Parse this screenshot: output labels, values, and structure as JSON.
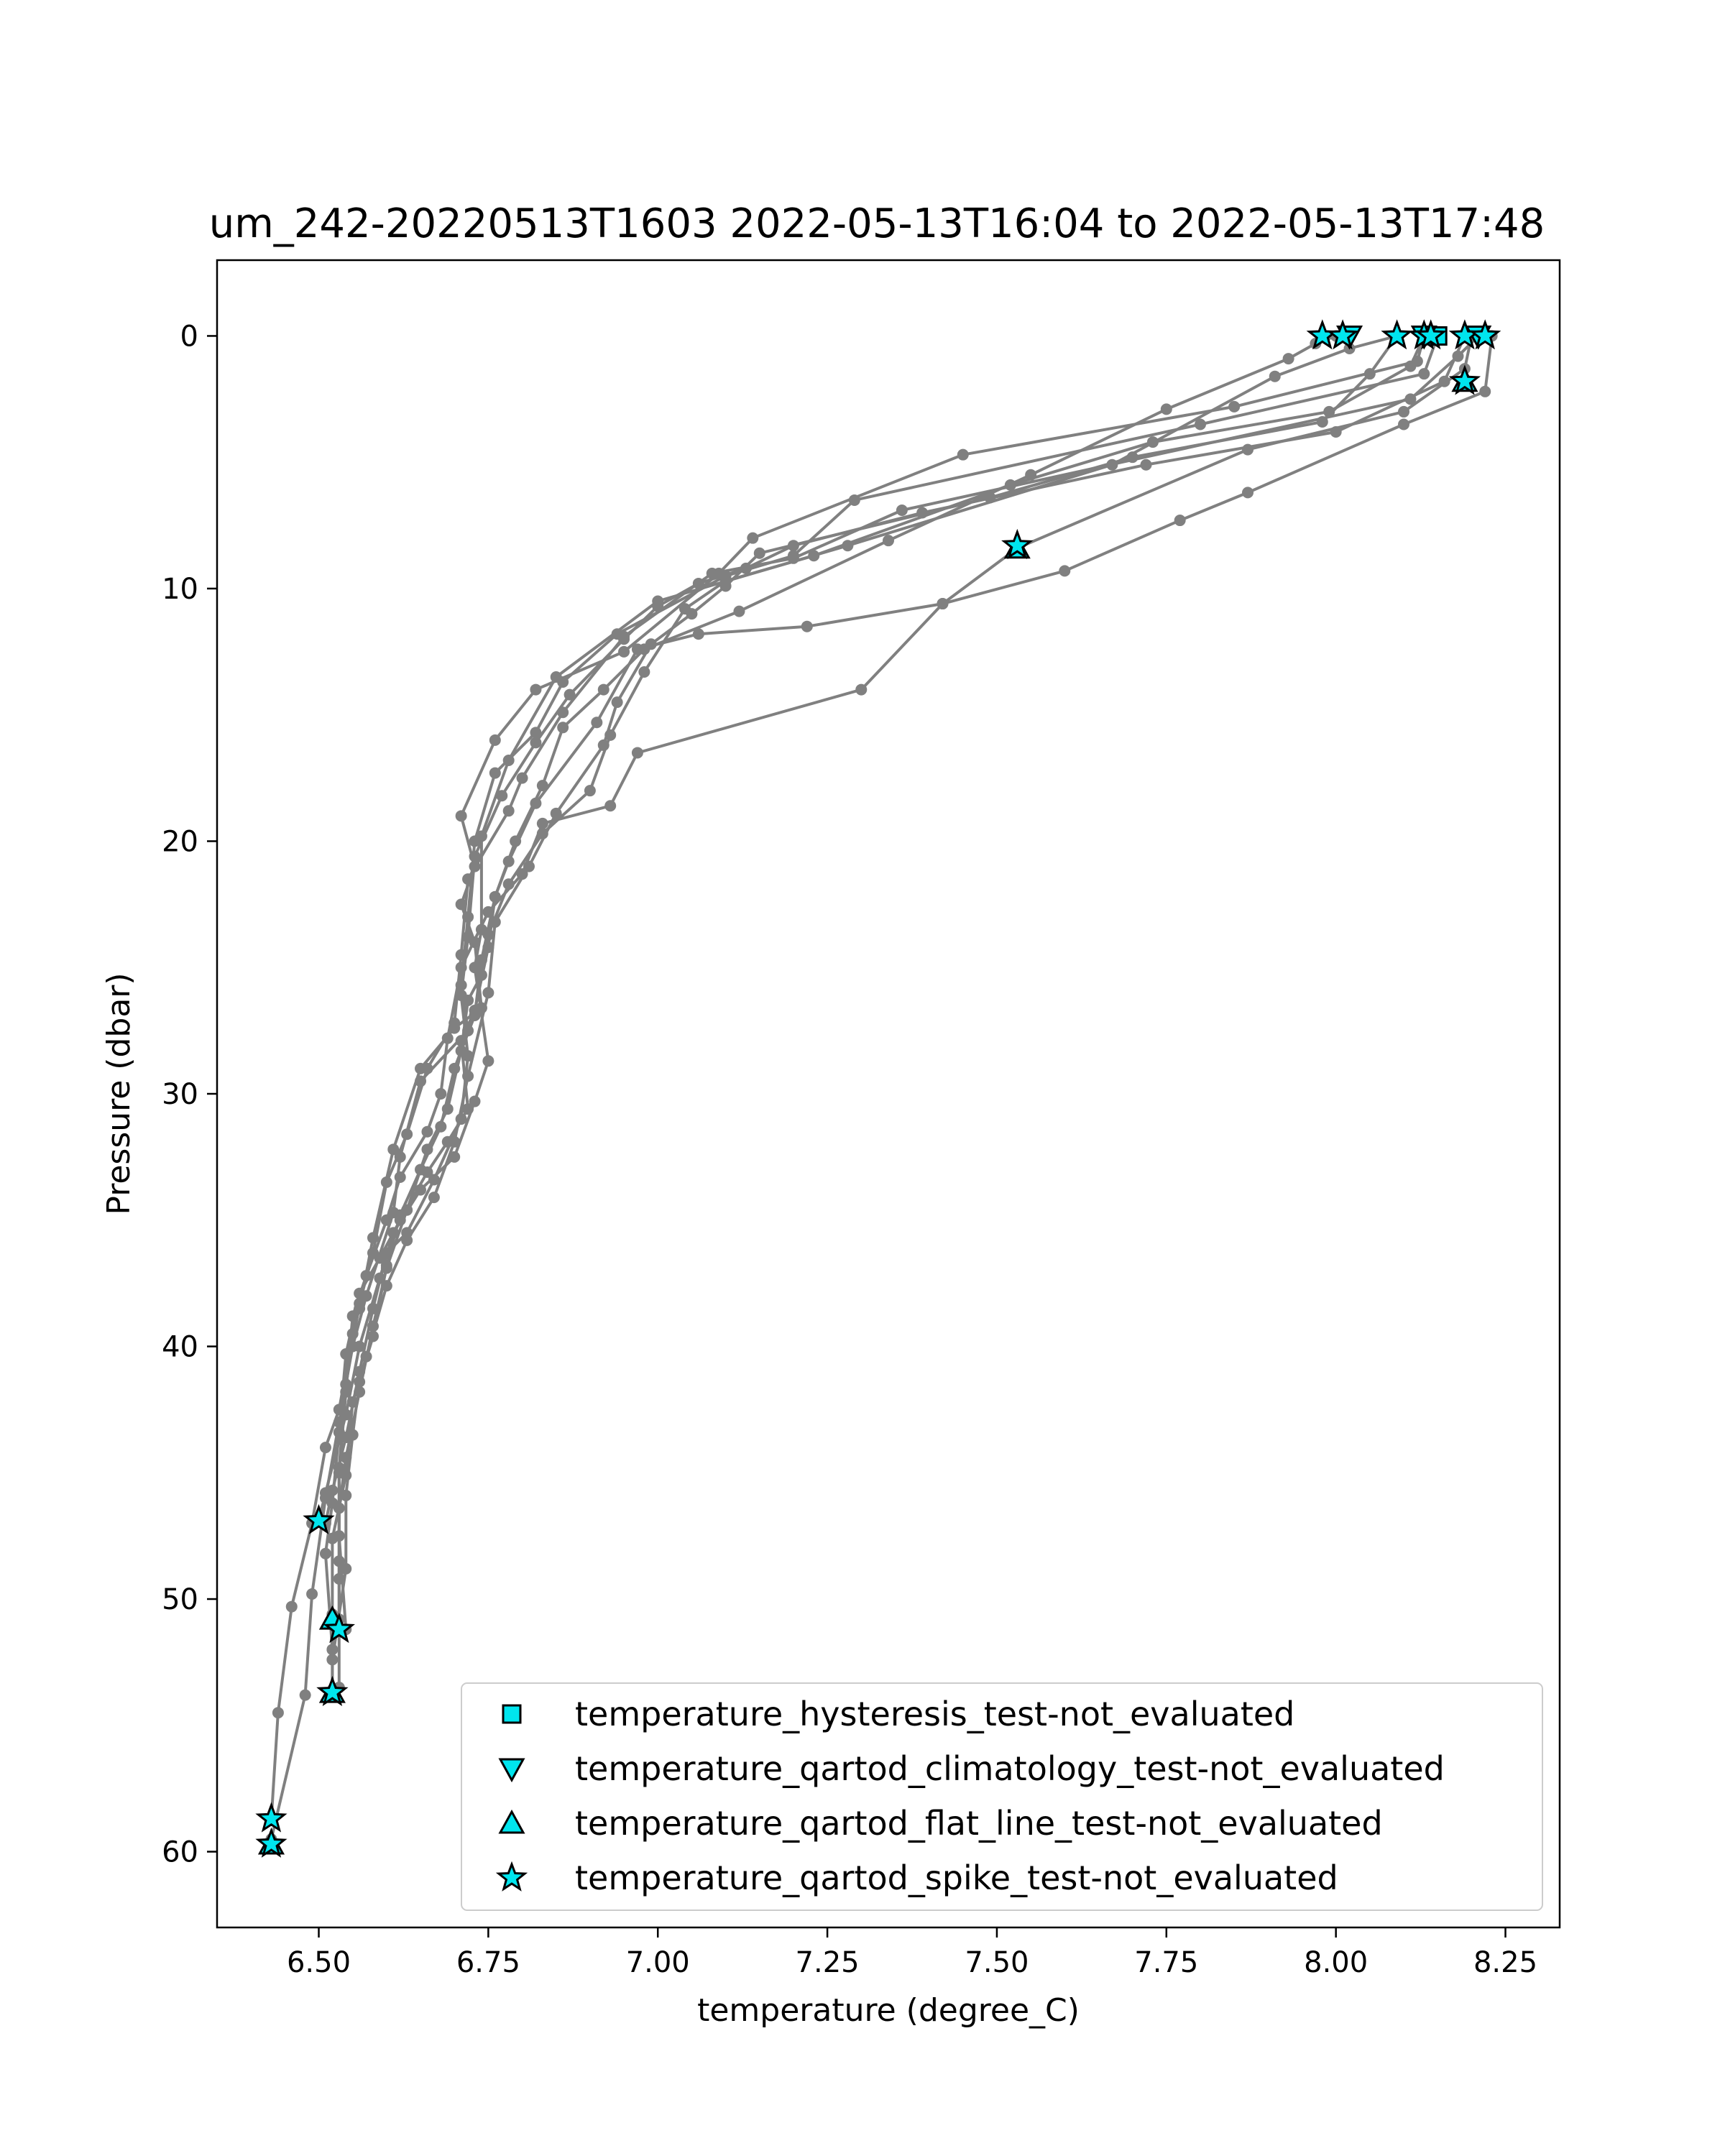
{
  "chart_data": {
    "type": "line",
    "title": "um_242-20220513T1603 2022-05-13T16:04 to 2022-05-13T17:48",
    "xlabel": "temperature (degree_C)",
    "ylabel": "Pressure (dbar)",
    "xlim": [
      6.35,
      8.33
    ],
    "ylim": [
      63.0,
      -3.0
    ],
    "y_inverted": true,
    "grid": false,
    "x_ticks": [
      6.5,
      6.75,
      7.0,
      7.25,
      7.5,
      7.75,
      8.0,
      8.25
    ],
    "x_tick_labels": [
      "6.50",
      "6.75",
      "7.00",
      "7.25",
      "7.50",
      "7.75",
      "8.00",
      "8.25"
    ],
    "y_ticks": [
      0,
      10,
      20,
      30,
      40,
      50,
      60
    ],
    "y_tick_labels": [
      "0",
      "10",
      "20",
      "30",
      "40",
      "50",
      "60"
    ],
    "line_color": "#808080",
    "marker_face_color": "#00e5ee",
    "marker_edge_color": "#000000",
    "legend_position": "lower-right",
    "series": [
      {
        "points": [
          [
            8.13,
            0.0
          ],
          [
            8.12,
            1.0
          ],
          [
            7.85,
            2.8
          ],
          [
            7.45,
            4.7
          ],
          [
            7.14,
            8.0
          ],
          [
            7.09,
            9.4
          ],
          [
            6.95,
            12.5
          ],
          [
            6.82,
            14.0
          ],
          [
            6.76,
            16.0
          ],
          [
            6.71,
            19.0
          ],
          [
            6.73,
            21.0
          ],
          [
            6.71,
            22.5
          ],
          [
            6.73,
            24.0
          ],
          [
            6.74,
            26.6
          ],
          [
            6.7,
            27.4
          ],
          [
            6.65,
            29.0
          ],
          [
            6.61,
            32.2
          ],
          [
            6.58,
            35.7
          ],
          [
            6.56,
            38.5
          ],
          [
            6.55,
            39.5
          ],
          [
            6.53,
            42.5
          ],
          [
            6.51,
            44.0
          ],
          [
            6.49,
            47.0
          ],
          [
            6.46,
            50.3
          ],
          [
            6.44,
            54.5
          ],
          [
            6.43,
            58.7
          ]
        ]
      },
      {
        "points": [
          [
            8.15,
            0.0
          ],
          [
            8.13,
            1.5
          ],
          [
            7.8,
            3.5
          ],
          [
            7.29,
            6.5
          ],
          [
            7.2,
            8.7
          ],
          [
            7.1,
            9.5
          ],
          [
            6.94,
            11.8
          ],
          [
            6.86,
            13.7
          ],
          [
            6.82,
            15.7
          ],
          [
            6.76,
            17.3
          ],
          [
            6.73,
            20.0
          ],
          [
            6.72,
            23.0
          ],
          [
            6.71,
            25.7
          ],
          [
            6.72,
            27.5
          ],
          [
            6.65,
            29.5
          ],
          [
            6.62,
            32.5
          ],
          [
            6.61,
            34.7
          ],
          [
            6.57,
            38.0
          ],
          [
            6.55,
            40.0
          ],
          [
            6.53,
            43.0
          ],
          [
            6.51,
            46.0
          ],
          [
            6.49,
            49.8
          ],
          [
            6.48,
            53.8
          ],
          [
            6.43,
            59.5
          ]
        ]
      },
      {
        "points": [
          [
            8.09,
            0.0
          ],
          [
            8.02,
            0.5
          ],
          [
            7.91,
            1.6
          ],
          [
            7.67,
            5.1
          ],
          [
            7.28,
            8.3
          ],
          [
            7.0,
            10.5
          ],
          [
            6.85,
            13.5
          ],
          [
            6.78,
            16.8
          ],
          [
            6.74,
            19.8
          ],
          [
            6.74,
            23.5
          ],
          [
            6.73,
            25.0
          ],
          [
            6.75,
            28.7
          ],
          [
            6.73,
            30.3
          ],
          [
            6.7,
            32.5
          ],
          [
            6.65,
            33.8
          ],
          [
            6.61,
            35.5
          ],
          [
            6.59,
            37.3
          ],
          [
            6.56,
            40.0
          ],
          [
            6.54,
            42.7
          ],
          [
            6.51,
            45.8
          ],
          [
            6.5,
            46.9
          ]
        ]
      },
      {
        "points": [
          [
            8.21,
            0.0
          ],
          [
            8.18,
            0.8
          ],
          [
            8.11,
            2.5
          ],
          [
            7.36,
            6.9
          ],
          [
            7.2,
            8.8
          ],
          [
            7.08,
            9.4
          ],
          [
            6.95,
            11.9
          ],
          [
            6.86,
            14.9
          ],
          [
            6.8,
            17.5
          ],
          [
            6.78,
            18.8
          ],
          [
            6.72,
            21.5
          ],
          [
            6.71,
            24.5
          ],
          [
            6.7,
            27.2
          ],
          [
            6.66,
            29.0
          ],
          [
            6.63,
            31.6
          ],
          [
            6.6,
            33.5
          ],
          [
            6.58,
            36.3
          ],
          [
            6.56,
            38.3
          ],
          [
            6.54,
            41.5
          ],
          [
            6.53,
            44.8
          ],
          [
            6.53,
            48.5
          ],
          [
            6.53,
            50.8
          ]
        ]
      },
      {
        "points": [
          [
            8.2,
            0.0
          ],
          [
            8.19,
            1.3
          ],
          [
            8.1,
            3.0
          ],
          [
            7.87,
            4.5
          ],
          [
            7.53,
            8.4
          ],
          [
            7.42,
            10.6
          ],
          [
            7.3,
            14.0
          ],
          [
            6.97,
            16.5
          ],
          [
            6.93,
            18.6
          ],
          [
            6.83,
            19.3
          ],
          [
            6.8,
            21.3
          ],
          [
            6.75,
            22.8
          ],
          [
            6.71,
            25.0
          ],
          [
            6.69,
            27.8
          ],
          [
            6.68,
            30.0
          ],
          [
            6.66,
            31.5
          ],
          [
            6.62,
            33.3
          ],
          [
            6.6,
            35.0
          ],
          [
            6.57,
            37.2
          ],
          [
            6.55,
            38.8
          ],
          [
            6.54,
            41.8
          ],
          [
            6.53,
            45.0
          ],
          [
            6.53,
            47.5
          ],
          [
            6.54,
            51.2
          ]
        ]
      },
      {
        "points": [
          [
            8.23,
            0.0
          ],
          [
            8.22,
            2.2
          ],
          [
            8.1,
            3.5
          ],
          [
            7.87,
            6.2
          ],
          [
            7.77,
            7.3
          ],
          [
            7.6,
            9.3
          ],
          [
            7.42,
            10.6
          ],
          [
            7.22,
            11.5
          ],
          [
            7.06,
            11.8
          ],
          [
            6.97,
            12.4
          ],
          [
            6.91,
            15.3
          ],
          [
            6.82,
            18.5
          ],
          [
            6.78,
            20.8
          ],
          [
            6.76,
            22.2
          ],
          [
            6.75,
            24.2
          ],
          [
            6.73,
            26.7
          ],
          [
            6.71,
            27.9
          ],
          [
            6.72,
            30.6
          ],
          [
            6.69,
            31.9
          ],
          [
            6.66,
            33.1
          ],
          [
            6.62,
            35.0
          ],
          [
            6.59,
            36.5
          ],
          [
            6.56,
            37.9
          ],
          [
            6.54,
            40.3
          ],
          [
            6.53,
            43.4
          ],
          [
            6.52,
            46.2
          ],
          [
            6.51,
            48.2
          ],
          [
            6.52,
            52.0
          ],
          [
            6.52,
            53.7
          ]
        ]
      },
      {
        "points": [
          [
            8.19,
            0.0
          ],
          [
            8.16,
            1.8
          ],
          [
            8.0,
            3.8
          ],
          [
            7.72,
            5.1
          ],
          [
            7.39,
            7.0
          ],
          [
            7.2,
            8.3
          ],
          [
            7.13,
            9.2
          ],
          [
            7.06,
            9.8
          ],
          [
            7.0,
            10.7
          ],
          [
            6.95,
            12.0
          ],
          [
            6.87,
            14.2
          ],
          [
            6.82,
            16.1
          ],
          [
            6.77,
            18.2
          ],
          [
            6.73,
            20.6
          ],
          [
            6.72,
            23.8
          ],
          [
            6.71,
            26.1
          ],
          [
            6.72,
            28.5
          ],
          [
            6.71,
            31.0
          ],
          [
            6.67,
            33.4
          ],
          [
            6.63,
            35.5
          ],
          [
            6.6,
            36.3
          ],
          [
            6.58,
            38.5
          ],
          [
            6.56,
            41.0
          ],
          [
            6.54,
            43.6
          ],
          [
            6.52,
            45.7
          ],
          [
            6.51,
            47.0
          ]
        ]
      },
      {
        "points": [
          [
            8.13,
            0.0
          ],
          [
            8.11,
            1.2
          ],
          [
            7.99,
            3.0
          ],
          [
            7.73,
            4.2
          ],
          [
            7.52,
            5.9
          ],
          [
            7.23,
            8.7
          ],
          [
            7.1,
            9.7
          ],
          [
            7.04,
            10.8
          ],
          [
            6.98,
            13.3
          ],
          [
            6.93,
            15.8
          ],
          [
            6.9,
            18.0
          ],
          [
            6.83,
            19.7
          ],
          [
            6.78,
            21.7
          ],
          [
            6.75,
            23.7
          ],
          [
            6.74,
            25.3
          ],
          [
            6.72,
            26.3
          ],
          [
            6.71,
            28.3
          ],
          [
            6.69,
            30.6
          ],
          [
            6.66,
            32.2
          ],
          [
            6.63,
            34.6
          ],
          [
            6.6,
            36.9
          ],
          [
            6.58,
            39.2
          ],
          [
            6.56,
            41.8
          ],
          [
            6.54,
            44.4
          ],
          [
            6.53,
            46.4
          ],
          [
            6.53,
            49.2
          ],
          [
            6.53,
            53.5
          ]
        ]
      },
      {
        "points": [
          [
            8.09,
            0.0
          ],
          [
            8.05,
            1.5
          ],
          [
            7.98,
            3.4
          ],
          [
            7.7,
            4.8
          ],
          [
            7.49,
            6.4
          ],
          [
            7.15,
            8.6
          ],
          [
            7.1,
            9.9
          ],
          [
            7.05,
            11.0
          ],
          [
            6.99,
            12.2
          ],
          [
            6.94,
            14.5
          ],
          [
            6.92,
            16.2
          ],
          [
            6.85,
            18.9
          ],
          [
            6.81,
            21.0
          ],
          [
            6.76,
            23.2
          ],
          [
            6.75,
            26.0
          ],
          [
            6.72,
            29.3
          ],
          [
            6.7,
            31.9
          ],
          [
            6.67,
            34.1
          ],
          [
            6.63,
            35.8
          ],
          [
            6.6,
            37.6
          ],
          [
            6.57,
            40.4
          ],
          [
            6.55,
            42.2
          ],
          [
            6.54,
            45.1
          ],
          [
            6.52,
            47.6
          ],
          [
            6.52,
            50.6
          ],
          [
            6.52,
            53.8
          ]
        ]
      },
      {
        "points": [
          [
            8.0,
            0.0
          ],
          [
            7.97,
            0.3
          ],
          [
            7.93,
            0.9
          ],
          [
            7.75,
            2.9
          ],
          [
            7.55,
            5.5
          ],
          [
            7.34,
            8.1
          ],
          [
            7.12,
            10.9
          ],
          [
            6.98,
            12.4
          ],
          [
            6.92,
            14.0
          ],
          [
            6.86,
            15.5
          ],
          [
            6.83,
            17.8
          ],
          [
            6.79,
            20.0
          ],
          [
            6.76,
            22.2
          ],
          [
            6.74,
            24.7
          ],
          [
            6.73,
            26.9
          ],
          [
            6.7,
            29.0
          ],
          [
            6.68,
            31.3
          ],
          [
            6.65,
            33.0
          ],
          [
            6.62,
            34.8
          ],
          [
            6.6,
            36.8
          ],
          [
            6.58,
            39.6
          ],
          [
            6.56,
            41.4
          ],
          [
            6.55,
            43.5
          ],
          [
            6.54,
            45.9
          ],
          [
            6.54,
            48.8
          ],
          [
            6.52,
            52.4
          ]
        ]
      }
    ],
    "flags": [
      {
        "name": "temperature_hysteresis_test-not_evaluated",
        "marker": "square",
        "points": [
          [
            8.15,
            0.0
          ]
        ]
      },
      {
        "name": "temperature_qartod_climatology_test-not_evaluated",
        "marker": "triangle-down",
        "points": [
          [
            8.13,
            0.0
          ],
          [
            8.21,
            0.0
          ],
          [
            8.02,
            0.0
          ]
        ]
      },
      {
        "name": "temperature_qartod_flat_line_test-not_evaluated",
        "marker": "triangle-up",
        "points": [
          [
            8.19,
            1.8
          ],
          [
            7.53,
            8.4
          ],
          [
            6.52,
            50.8
          ],
          [
            6.52,
            53.7
          ],
          [
            6.43,
            59.7
          ]
        ]
      },
      {
        "name": "temperature_qartod_spike_test-not_evaluated",
        "marker": "star",
        "points": [
          [
            7.98,
            0.0
          ],
          [
            8.01,
            0.0
          ],
          [
            8.09,
            0.0
          ],
          [
            8.13,
            0.0
          ],
          [
            8.14,
            0.0
          ],
          [
            8.19,
            0.0
          ],
          [
            8.22,
            0.0
          ],
          [
            8.19,
            1.8
          ],
          [
            7.53,
            8.3
          ],
          [
            6.5,
            46.9
          ],
          [
            6.53,
            51.2
          ],
          [
            6.52,
            53.7
          ],
          [
            6.43,
            58.7
          ],
          [
            6.43,
            59.7
          ]
        ]
      }
    ]
  }
}
